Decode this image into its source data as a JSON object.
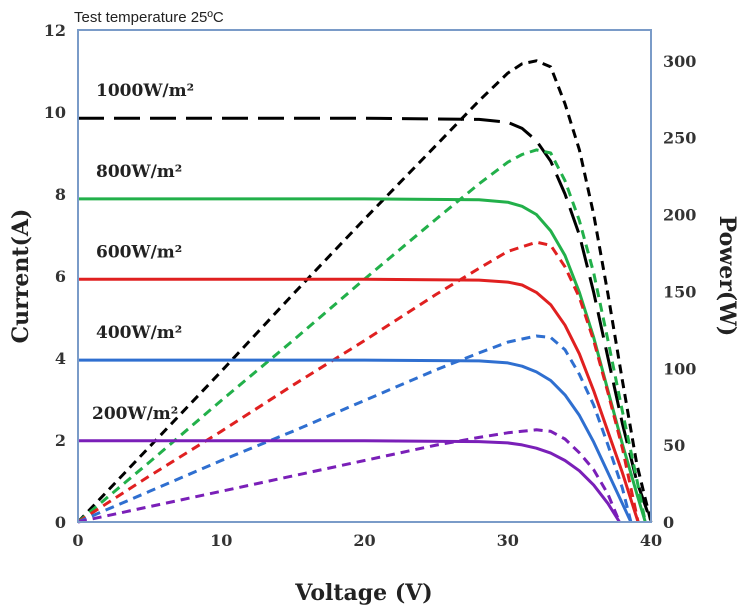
{
  "chart_data": {
    "type": "line",
    "title": "Test  temperature 25ºC",
    "xlabel": "Voltage (V)",
    "ylabel_left": "Current(A)",
    "ylabel_right": "Power(W)",
    "xlim": [
      0,
      40
    ],
    "ylim_left": [
      0,
      12
    ],
    "ylim_right": [
      0,
      320
    ],
    "x_ticks": [
      "0",
      "10",
      "20",
      "30",
      "40"
    ],
    "y_left_ticks": [
      "0",
      "2",
      "4",
      "6",
      "8",
      "10",
      "12"
    ],
    "y_right_ticks": [
      "0",
      "50",
      "100",
      "150",
      "200",
      "250",
      "300"
    ],
    "grid": false,
    "irradiance_labels": [
      "1000W/m²",
      "800W/m²",
      "600W/m²",
      "400W/m²",
      "200W/m²"
    ],
    "series": [
      {
        "name": "1000W/m²",
        "color": "#000000",
        "iv": {
          "x": [
            0,
            10,
            20,
            28,
            30,
            31,
            32,
            33,
            34,
            35,
            36,
            37,
            38,
            39,
            40
          ],
          "y": [
            9.85,
            9.85,
            9.85,
            9.82,
            9.75,
            9.6,
            9.3,
            8.8,
            8.0,
            7.0,
            5.6,
            4.0,
            2.4,
            1.0,
            0
          ]
        },
        "pv": {
          "x": [
            0,
            5,
            10,
            15,
            20,
            25,
            28,
            30,
            31,
            32,
            33,
            34,
            35,
            36,
            37,
            38,
            39,
            40
          ],
          "y": [
            0,
            49,
            98,
            148,
            197,
            245,
            274,
            292,
            298,
            300,
            296,
            272,
            242,
            200,
            148,
            92,
            38,
            0
          ]
        }
      },
      {
        "name": "800W/m²",
        "color": "#22b04a",
        "iv": {
          "x": [
            0,
            10,
            20,
            28,
            30,
            31,
            32,
            33,
            34,
            35,
            36,
            37,
            38,
            39,
            39.6
          ],
          "y": [
            7.88,
            7.88,
            7.88,
            7.86,
            7.8,
            7.7,
            7.5,
            7.1,
            6.5,
            5.6,
            4.5,
            3.2,
            1.9,
            0.7,
            0
          ]
        },
        "pv": {
          "x": [
            0,
            5,
            10,
            15,
            20,
            25,
            28,
            30,
            31,
            32,
            33,
            34,
            35,
            36,
            37,
            38,
            39,
            39.6
          ],
          "y": [
            0,
            39,
            79,
            118,
            158,
            197,
            220,
            234,
            239,
            242,
            240,
            222,
            196,
            162,
            118,
            72,
            28,
            0
          ]
        }
      },
      {
        "name": "600W/m²",
        "color": "#e02020",
        "iv": {
          "x": [
            0,
            10,
            20,
            28,
            30,
            31,
            32,
            33,
            34,
            35,
            36,
            37,
            38,
            39.1
          ],
          "y": [
            5.92,
            5.92,
            5.92,
            5.9,
            5.85,
            5.78,
            5.6,
            5.3,
            4.8,
            4.1,
            3.2,
            2.2,
            1.2,
            0
          ]
        },
        "pv": {
          "x": [
            0,
            5,
            10,
            15,
            20,
            25,
            28,
            30,
            31,
            32,
            33,
            34,
            35,
            36,
            37,
            38,
            39.1
          ],
          "y": [
            0,
            30,
            59,
            89,
            118,
            148,
            165,
            176,
            179,
            182,
            180,
            166,
            146,
            118,
            84,
            48,
            0
          ]
        }
      },
      {
        "name": "400W/m²",
        "color": "#2f6fd0",
        "iv": {
          "x": [
            0,
            10,
            20,
            28,
            30,
            31,
            32,
            33,
            34,
            35,
            36,
            37,
            38,
            38.6
          ],
          "y": [
            3.95,
            3.95,
            3.95,
            3.93,
            3.88,
            3.8,
            3.66,
            3.45,
            3.1,
            2.6,
            1.95,
            1.2,
            0.45,
            0
          ]
        },
        "pv": {
          "x": [
            0,
            5,
            10,
            15,
            20,
            25,
            28,
            30,
            31,
            32,
            33,
            34,
            35,
            36,
            37,
            38,
            38.6
          ],
          "y": [
            0,
            20,
            40,
            59,
            79,
            99,
            110,
            117,
            119,
            121,
            120,
            112,
            96,
            76,
            50,
            22,
            0
          ]
        }
      },
      {
        "name": "200W/m²",
        "color": "#7a1fb8",
        "iv": {
          "x": [
            0,
            10,
            20,
            28,
            30,
            31,
            32,
            33,
            34,
            35,
            36,
            37,
            37.8
          ],
          "y": [
            1.98,
            1.98,
            1.98,
            1.96,
            1.93,
            1.88,
            1.8,
            1.68,
            1.5,
            1.25,
            0.9,
            0.45,
            0
          ]
        },
        "pv": {
          "x": [
            0,
            5,
            10,
            15,
            20,
            25,
            28,
            30,
            31,
            32,
            33,
            34,
            35,
            36,
            37,
            37.8
          ],
          "y": [
            0,
            10,
            20,
            30,
            40,
            50,
            55,
            58,
            59,
            60,
            59,
            54,
            45,
            34,
            18,
            0
          ]
        }
      }
    ]
  }
}
